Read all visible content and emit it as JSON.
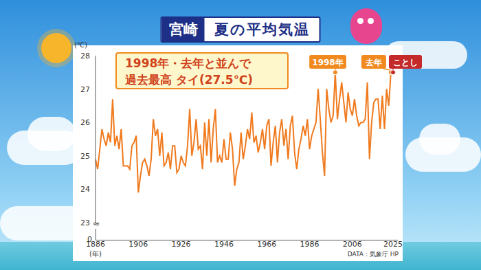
{
  "chart_data": {
    "type": "line",
    "location": "宮崎",
    "title": "夏の平均気温",
    "annotation": [
      "1998年・去年と並んで",
      "過去最高 タイ(27.5℃)"
    ],
    "source": "DATA：気象庁 HP",
    "y_unit": "(℃)",
    "x_unit": "(年)",
    "axis_break": {
      "symbol": "≈",
      "label": "0"
    },
    "x": [
      1886,
      1887,
      1888,
      1889,
      1890,
      1891,
      1892,
      1893,
      1894,
      1895,
      1896,
      1897,
      1898,
      1899,
      1900,
      1901,
      1902,
      1903,
      1904,
      1905,
      1906,
      1907,
      1908,
      1909,
      1910,
      1911,
      1912,
      1913,
      1914,
      1915,
      1916,
      1917,
      1918,
      1919,
      1920,
      1921,
      1922,
      1923,
      1924,
      1925,
      1926,
      1927,
      1928,
      1929,
      1930,
      1931,
      1932,
      1933,
      1934,
      1935,
      1936,
      1937,
      1938,
      1939,
      1940,
      1941,
      1942,
      1943,
      1944,
      1945,
      1946,
      1947,
      1948,
      1949,
      1950,
      1951,
      1952,
      1953,
      1954,
      1955,
      1956,
      1957,
      1958,
      1959,
      1960,
      1961,
      1962,
      1963,
      1964,
      1965,
      1966,
      1967,
      1968,
      1969,
      1970,
      1971,
      1972,
      1973,
      1974,
      1975,
      1976,
      1977,
      1978,
      1979,
      1980,
      1981,
      1982,
      1983,
      1984,
      1985,
      1986,
      1987,
      1988,
      1989,
      1990,
      1991,
      1992,
      1993,
      1994,
      1995,
      1996,
      1997,
      1998,
      1999,
      2000,
      2001,
      2002,
      2003,
      2004,
      2005,
      2006,
      2007,
      2008,
      2009,
      2010,
      2011,
      2012,
      2013,
      2014,
      2015,
      2016,
      2017,
      2018,
      2019,
      2020,
      2021,
      2022,
      2023,
      2024,
      2025
    ],
    "values": [
      24.9,
      24.6,
      25.2,
      25.8,
      25.5,
      25.3,
      25.7,
      25.4,
      26.7,
      25.3,
      25.6,
      25.2,
      25.8,
      24.7,
      24.7,
      24.7,
      24.6,
      25.3,
      25.4,
      25.6,
      23.9,
      24.4,
      24.8,
      24.9,
      24.7,
      24.4,
      24.9,
      26.1,
      25.6,
      25.8,
      25.0,
      25.7,
      24.7,
      24.8,
      25.1,
      24.6,
      25.3,
      25.3,
      24.5,
      24.6,
      25.0,
      24.8,
      24.7,
      25.3,
      26.4,
      25.0,
      25.4,
      26.1,
      25.2,
      25.3,
      24.6,
      26.0,
      25.0,
      26.1,
      24.8,
      25.8,
      26.4,
      24.8,
      25.0,
      24.8,
      25.5,
      24.9,
      24.9,
      25.7,
      25.2,
      24.1,
      24.6,
      24.8,
      25.7,
      24.9,
      25.3,
      25.8,
      25.5,
      26.3,
      25.4,
      25.6,
      25.1,
      25.4,
      25.8,
      25.2,
      25.9,
      26.1,
      24.7,
      25.4,
      25.9,
      24.8,
      25.7,
      26.1,
      25.3,
      25.8,
      24.9,
      25.9,
      26.2,
      25.1,
      24.6,
      25.2,
      25.5,
      25.9,
      25.6,
      26.1,
      25.2,
      25.6,
      25.8,
      26.0,
      27.0,
      26.1,
      25.1,
      24.4,
      27.0,
      26.4,
      26.0,
      26.2,
      27.5,
      26.1,
      26.7,
      27.2,
      26.6,
      26.0,
      26.9,
      26.4,
      26.2,
      26.7,
      26.2,
      25.9,
      26.0,
      26.0,
      26.1,
      27.2,
      24.9,
      26.0,
      26.6,
      26.7,
      26.7,
      25.8,
      26.8,
      25.8,
      27.0,
      26.5,
      27.5,
      27.5
    ],
    "color": "#f07a1e",
    "xlim": [
      1886,
      2025
    ],
    "xticks": [
      1886,
      1906,
      1926,
      1946,
      1966,
      1986,
      2006,
      2025
    ],
    "ylim": [
      23,
      28
    ],
    "yticks": [
      23,
      24,
      25,
      26,
      27,
      28
    ],
    "grid": false,
    "highlights": [
      {
        "x": 1998,
        "value": 27.5,
        "label": "1998年",
        "color": "#f08a1e"
      },
      {
        "x": 2024,
        "value": 27.5,
        "label": "去年",
        "color": "#f08a1e"
      },
      {
        "x": 2025,
        "value": 27.5,
        "label": "ことし",
        "color": "#c42a2a"
      }
    ]
  }
}
